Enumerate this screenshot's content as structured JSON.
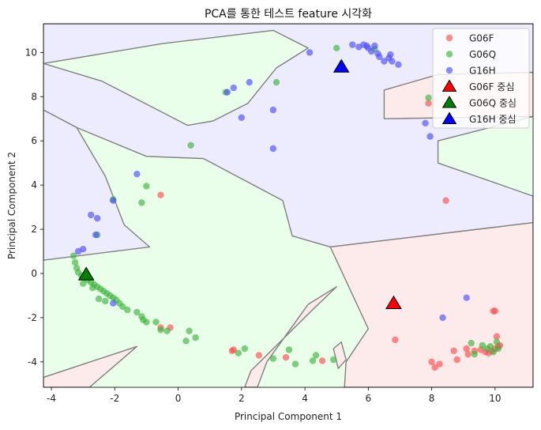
{
  "chart_data": {
    "type": "scatter",
    "title": "PCA를 통한 테스트 feature 시각화",
    "xlabel": "Principal Component 1",
    "ylabel": "Principal Component 2",
    "xlim": [
      -4.25,
      11.2
    ],
    "ylim": [
      -5.15,
      11.3
    ],
    "xticks": [
      -4,
      -2,
      0,
      2,
      4,
      6,
      8,
      10
    ],
    "yticks": [
      -4,
      -2,
      0,
      2,
      4,
      6,
      8,
      10
    ],
    "legend_position": "top-right",
    "background": "decision-regions",
    "series": [
      {
        "name": "G06F",
        "color": "#ff4d4d",
        "marker": "circle",
        "points": [
          [
            -0.55,
            3.55
          ],
          [
            7.9,
            7.7
          ],
          [
            8.45,
            3.3
          ],
          [
            6.85,
            -3.0
          ],
          [
            1.75,
            -3.45
          ],
          [
            1.7,
            -3.5
          ],
          [
            2.55,
            -3.7
          ],
          [
            3.4,
            -3.8
          ],
          [
            4.55,
            -3.95
          ],
          [
            8.0,
            -4.0
          ],
          [
            8.25,
            -4.1
          ],
          [
            8.7,
            -3.5
          ],
          [
            8.8,
            -3.9
          ],
          [
            9.1,
            -3.4
          ],
          [
            9.15,
            -3.65
          ],
          [
            9.35,
            -3.5
          ],
          [
            9.55,
            -3.45
          ],
          [
            9.7,
            -3.55
          ],
          [
            9.8,
            -3.6
          ],
          [
            9.9,
            -3.5
          ],
          [
            10.0,
            -3.4
          ],
          [
            10.05,
            -2.85
          ],
          [
            10.1,
            -3.3
          ],
          [
            10.15,
            -3.25
          ],
          [
            9.95,
            -1.7
          ],
          [
            10.0,
            -1.7
          ],
          [
            -0.55,
            -2.45
          ],
          [
            -0.25,
            -2.45
          ],
          [
            8.1,
            -4.25
          ]
        ]
      },
      {
        "name": "G06Q",
        "color": "#3cb43c",
        "marker": "circle",
        "points": [
          [
            1.5,
            8.2
          ],
          [
            3.1,
            8.65
          ],
          [
            5.0,
            10.2
          ],
          [
            6.2,
            10.15
          ],
          [
            7.9,
            7.95
          ],
          [
            0.4,
            5.8
          ],
          [
            -1.0,
            3.95
          ],
          [
            -1.15,
            3.2
          ],
          [
            -2.05,
            3.35
          ],
          [
            -2.55,
            1.75
          ],
          [
            -3.3,
            0.8
          ],
          [
            -3.25,
            0.5
          ],
          [
            -3.2,
            0.25
          ],
          [
            -3.15,
            0.05
          ],
          [
            -3.05,
            -0.1
          ],
          [
            -2.95,
            -0.2
          ],
          [
            -2.85,
            -0.3
          ],
          [
            -2.75,
            -0.4
          ],
          [
            -2.65,
            -0.5
          ],
          [
            -2.55,
            -0.6
          ],
          [
            -2.45,
            -0.7
          ],
          [
            -2.35,
            -0.8
          ],
          [
            -2.25,
            -0.9
          ],
          [
            -2.15,
            -1.0
          ],
          [
            -2.05,
            -1.1
          ],
          [
            -1.95,
            -1.2
          ],
          [
            -1.85,
            -1.35
          ],
          [
            -1.75,
            -1.5
          ],
          [
            -1.6,
            -1.65
          ],
          [
            -1.3,
            -1.75
          ],
          [
            -1.15,
            -1.95
          ],
          [
            -1.1,
            -2.1
          ],
          [
            -1.0,
            -2.2
          ],
          [
            -0.7,
            -2.2
          ],
          [
            -0.55,
            -2.55
          ],
          [
            -0.35,
            -2.6
          ],
          [
            0.35,
            -2.6
          ],
          [
            0.25,
            -3.05
          ],
          [
            0.55,
            -2.9
          ],
          [
            1.9,
            -3.6
          ],
          [
            2.1,
            -3.4
          ],
          [
            3.0,
            -3.85
          ],
          [
            3.5,
            -3.45
          ],
          [
            3.7,
            -4.1
          ],
          [
            4.25,
            -3.95
          ],
          [
            4.35,
            -3.7
          ],
          [
            4.9,
            -3.9
          ],
          [
            9.25,
            -3.15
          ],
          [
            9.35,
            -3.65
          ],
          [
            9.6,
            -3.25
          ],
          [
            9.75,
            -3.4
          ],
          [
            9.85,
            -3.3
          ],
          [
            9.95,
            -3.55
          ],
          [
            10.05,
            -3.1
          ],
          [
            10.1,
            -3.4
          ],
          [
            -2.5,
            -1.15
          ],
          [
            -2.7,
            -0.65
          ],
          [
            -3.0,
            -0.45
          ],
          [
            -2.3,
            -1.25
          ]
        ]
      },
      {
        "name": "G16H",
        "color": "#4d4dff",
        "marker": "circle",
        "points": [
          [
            4.15,
            10.0
          ],
          [
            5.5,
            10.35
          ],
          [
            5.7,
            10.25
          ],
          [
            5.85,
            10.35
          ],
          [
            5.95,
            10.3
          ],
          [
            6.0,
            10.2
          ],
          [
            6.1,
            10.05
          ],
          [
            6.3,
            9.95
          ],
          [
            6.35,
            9.8
          ],
          [
            6.5,
            9.6
          ],
          [
            6.65,
            9.75
          ],
          [
            6.75,
            9.6
          ],
          [
            6.95,
            9.45
          ],
          [
            6.7,
            9.9
          ],
          [
            6.2,
            10.3
          ],
          [
            1.75,
            8.4
          ],
          [
            1.55,
            8.2
          ],
          [
            2.25,
            8.65
          ],
          [
            2.0,
            7.05
          ],
          [
            3.0,
            7.4
          ],
          [
            3.0,
            5.65
          ],
          [
            7.8,
            6.8
          ],
          [
            7.95,
            6.2
          ],
          [
            -1.3,
            4.5
          ],
          [
            -2.05,
            3.3
          ],
          [
            -2.75,
            2.65
          ],
          [
            -2.6,
            1.75
          ],
          [
            -2.55,
            2.5
          ],
          [
            -3.0,
            1.1
          ],
          [
            -3.15,
            1.0
          ],
          [
            -2.05,
            -1.35
          ],
          [
            9.1,
            -1.1
          ],
          [
            8.35,
            -2.0
          ]
        ]
      }
    ],
    "centroids": [
      {
        "name": "G06F 중심",
        "x": 6.8,
        "y": -1.35,
        "color": "#ff0000"
      },
      {
        "name": "G06Q 중심",
        "x": -2.9,
        "y": -0.05,
        "color": "#008000"
      },
      {
        "name": "G16H 중심",
        "x": 5.15,
        "y": 9.35,
        "color": "#0000ff"
      }
    ],
    "regions": [
      {
        "class": "G16H",
        "fill": "#ececfe",
        "polygon": [
          [
            -4.25,
            11.3
          ],
          [
            11.2,
            11.3
          ],
          [
            11.2,
            7.1
          ],
          [
            8.2,
            6.0
          ],
          [
            8.2,
            5.0
          ],
          [
            11.2,
            3.5
          ],
          [
            11.2,
            2.3
          ],
          [
            4.8,
            1.2
          ],
          [
            3.6,
            1.7
          ],
          [
            3.3,
            3.3
          ],
          [
            0.8,
            5.2
          ],
          [
            -1.0,
            5.3
          ],
          [
            -3.2,
            6.6
          ],
          [
            -4.25,
            7.4
          ],
          [
            -4.25,
            9.5
          ],
          [
            -2.4,
            8.7
          ],
          [
            0.3,
            6.7
          ],
          [
            1.1,
            6.9
          ],
          [
            2.2,
            7.7
          ],
          [
            3.1,
            9.3
          ],
          [
            4.1,
            10.2
          ],
          [
            3.0,
            11.0
          ],
          [
            -0.5,
            10.4
          ],
          [
            -4.25,
            9.5
          ]
        ]
      },
      {
        "class": "G16H",
        "fill": "#ececfe",
        "polygon": [
          [
            -4.25,
            7.4
          ],
          [
            -3.2,
            6.6
          ],
          [
            -2.3,
            4.4
          ],
          [
            -1.7,
            2.2
          ],
          [
            -0.9,
            1.2
          ],
          [
            -4.25,
            0.6
          ]
        ]
      },
      {
        "class": "G06F",
        "fill": "#fdeaea",
        "polygon": [
          [
            11.2,
            7.1
          ],
          [
            6.5,
            7.0
          ],
          [
            6.5,
            8.3
          ],
          [
            8.2,
            9.0
          ],
          [
            11.2,
            9.1
          ]
        ]
      },
      {
        "class": "G06F",
        "fill": "#fdeaea",
        "polygon": [
          [
            11.2,
            2.3
          ],
          [
            4.8,
            1.2
          ],
          [
            6.0,
            -2.5
          ],
          [
            5.3,
            -4.0
          ],
          [
            5.25,
            -5.15
          ],
          [
            11.2,
            -5.15
          ]
        ]
      },
      {
        "class": "G06F",
        "fill": "#fdeaea",
        "polygon": [
          [
            -4.25,
            -5.15
          ],
          [
            -4.25,
            -4.7
          ],
          [
            -1.3,
            -3.3
          ],
          [
            -2.8,
            -5.15
          ]
        ]
      },
      {
        "class": "G06F",
        "fill": "#fdeaea",
        "polygon": [
          [
            2.1,
            -5.15
          ],
          [
            2.3,
            -4.4
          ],
          [
            4.2,
            -1.7
          ],
          [
            5.0,
            -0.6
          ],
          [
            4.1,
            -1.4
          ],
          [
            2.8,
            -4.0
          ],
          [
            2.5,
            -5.15
          ]
        ]
      },
      {
        "class": "G06F",
        "fill": "#fdeaea",
        "polygon": [
          [
            5.05,
            -4.3
          ],
          [
            4.9,
            -3.4
          ],
          [
            5.15,
            -3.1
          ],
          [
            5.3,
            -3.9
          ]
        ]
      }
    ]
  }
}
